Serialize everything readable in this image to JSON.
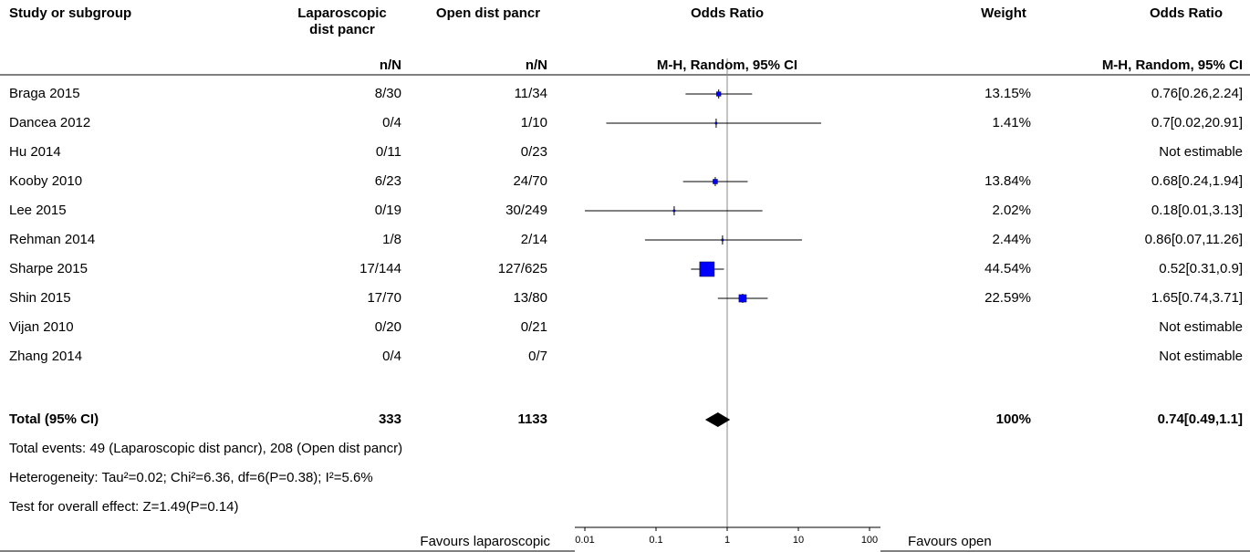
{
  "chart_data": {
    "type": "forest",
    "xscale": "log",
    "xlim": [
      0.01,
      100
    ],
    "xticks": [
      0.01,
      0.1,
      1,
      10,
      100
    ],
    "square_color": "#0000ff",
    "columns": [
      "Study or subgroup",
      "Laparoscopic dist pancr",
      "Open dist pancr",
      "Odds Ratio",
      "Weight",
      "Odds Ratio"
    ],
    "subheaders": [
      "n/N",
      "n/N",
      "M-H, Random, 95% CI",
      "M-H, Random, 95% CI"
    ],
    "studies": [
      {
        "name": "Braga 2015",
        "exp": "8/30",
        "ctrl": "11/34",
        "or": 0.76,
        "lo": 0.26,
        "hi": 2.24,
        "weight": 13.15,
        "weight_label": "13.15%",
        "ci_label": "0.76[0.26,2.24]"
      },
      {
        "name": "Dancea 2012",
        "exp": "0/4",
        "ctrl": "1/10",
        "or": 0.7,
        "lo": 0.02,
        "hi": 20.91,
        "weight": 1.41,
        "weight_label": "1.41%",
        "ci_label": "0.7[0.02,20.91]"
      },
      {
        "name": "Hu 2014",
        "exp": "0/11",
        "ctrl": "0/23",
        "or": null,
        "lo": null,
        "hi": null,
        "weight": null,
        "weight_label": null,
        "ci_label": "Not estimable"
      },
      {
        "name": "Kooby 2010",
        "exp": "6/23",
        "ctrl": "24/70",
        "or": 0.68,
        "lo": 0.24,
        "hi": 1.94,
        "weight": 13.84,
        "weight_label": "13.84%",
        "ci_label": "0.68[0.24,1.94]"
      },
      {
        "name": "Lee 2015",
        "exp": "0/19",
        "ctrl": "30/249",
        "or": 0.18,
        "lo": 0.01,
        "hi": 3.13,
        "weight": 2.02,
        "weight_label": "2.02%",
        "ci_label": "0.18[0.01,3.13]"
      },
      {
        "name": "Rehman 2014",
        "exp": "1/8",
        "ctrl": "2/14",
        "or": 0.86,
        "lo": 0.07,
        "hi": 11.26,
        "weight": 2.44,
        "weight_label": "2.44%",
        "ci_label": "0.86[0.07,11.26]"
      },
      {
        "name": "Sharpe 2015",
        "exp": "17/144",
        "ctrl": "127/625",
        "or": 0.52,
        "lo": 0.31,
        "hi": 0.9,
        "weight": 44.54,
        "weight_label": "44.54%",
        "ci_label": "0.52[0.31,0.9]"
      },
      {
        "name": "Shin 2015",
        "exp": "17/70",
        "ctrl": "13/80",
        "or": 1.65,
        "lo": 0.74,
        "hi": 3.71,
        "weight": 22.59,
        "weight_label": "22.59%",
        "ci_label": "1.65[0.74,3.71]"
      },
      {
        "name": "Vijan 2010",
        "exp": "0/20",
        "ctrl": "0/21",
        "or": null,
        "lo": null,
        "hi": null,
        "weight": null,
        "weight_label": null,
        "ci_label": "Not estimable"
      },
      {
        "name": "Zhang 2014",
        "exp": "0/4",
        "ctrl": "0/7",
        "or": null,
        "lo": null,
        "hi": null,
        "weight": null,
        "weight_label": null,
        "ci_label": "Not estimable"
      }
    ],
    "total": {
      "name": "Total (95% CI)",
      "exp": 333,
      "ctrl": 1133,
      "or": 0.74,
      "lo": 0.49,
      "hi": 1.1,
      "weight": 100,
      "weight_label": "100%",
      "ci_label": "0.74[0.49,1.1]"
    },
    "notes": [
      "Total events: 49 (Laparoscopic dist pancr), 208 (Open dist pancr)",
      "Heterogeneity: Tau²=0.02; Chi²=6.36, df=6(P=0.38); I²=5.6%",
      "Test for overall effect: Z=1.49(P=0.14)"
    ],
    "favours_left": "Favours laparoscopic",
    "favours_right": "Favours open"
  }
}
